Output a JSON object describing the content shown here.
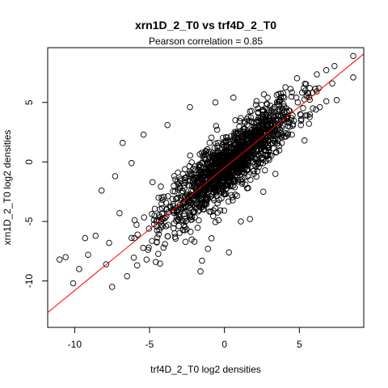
{
  "chart_data": {
    "type": "scatter",
    "title": "xrn1D_2_T0 vs trf4D_2_T0",
    "subtitle": "Pearson correlation =  0.85",
    "xlabel": "trf4D_2_T0 log2 densities",
    "ylabel": "xrn1D_2_T0 log2 densities",
    "xlim": [
      -11.8,
      9.3
    ],
    "ylim": [
      -13.9,
      9.6
    ],
    "xticks": [
      -10,
      -5,
      0,
      5
    ],
    "xtick_labels": [
      "-10",
      "-5",
      "0",
      "5"
    ],
    "yticks": [
      -10,
      -5,
      0,
      5
    ],
    "yticks_labels": [
      "-10",
      "-5",
      "0",
      "5"
    ],
    "grid": false,
    "legend": "none",
    "point_marker": "open-circle",
    "point_color": "#000000",
    "fit_line": {
      "color": "#ff0000",
      "intercept": -0.5,
      "slope": 1.03,
      "x_range": [
        -11.8,
        9.3
      ]
    },
    "points": [
      [
        8.6,
        8.9
      ],
      [
        8.6,
        7.1
      ],
      [
        7.5,
        5.2
      ],
      [
        7.2,
        6.6
      ],
      [
        6.3,
        6.2
      ],
      [
        5.9,
        4.5
      ],
      [
        5.4,
        6.0
      ],
      [
        5.1,
        3.1
      ],
      [
        4.8,
        5.4
      ],
      [
        4.5,
        2.3
      ],
      [
        3.6,
        5.7
      ],
      [
        3.2,
        1.6
      ],
      [
        2.6,
        -2.5
      ],
      [
        2.1,
        4.8
      ],
      [
        1.4,
        -1.9
      ],
      [
        1.1,
        -5.0
      ],
      [
        0.3,
        -7.6
      ],
      [
        0.1,
        -2.7
      ],
      [
        -0.4,
        -4.9
      ],
      [
        -1.1,
        -7.3
      ],
      [
        -1.6,
        -9.2
      ],
      [
        -2.3,
        -4.4
      ],
      [
        -3.3,
        -6.3
      ],
      [
        -3.9,
        -5.4
      ],
      [
        -4.4,
        -3.0
      ],
      [
        -5.2,
        -8.2
      ],
      [
        -5.8,
        -6.1
      ],
      [
        -6.5,
        -9.6
      ],
      [
        -7.0,
        -4.3
      ],
      [
        -7.5,
        -10.5
      ],
      [
        -7.9,
        -8.6
      ],
      [
        -8.2,
        -2.4
      ],
      [
        -8.6,
        -6.2
      ],
      [
        -9.1,
        -7.8
      ],
      [
        -9.7,
        -9.0
      ],
      [
        -10.1,
        -10.2
      ],
      [
        -10.6,
        -8.0
      ],
      [
        -11.0,
        -8.2
      ],
      [
        -6.2,
        -0.1
      ],
      [
        -6.8,
        1.6
      ],
      [
        -5.4,
        2.3
      ],
      [
        -3.8,
        3.1
      ],
      [
        -2.3,
        4.6
      ],
      [
        -0.6,
        5.0
      ],
      [
        0.6,
        5.4
      ],
      [
        1.7,
        -4.8
      ],
      [
        3.4,
        -1.0
      ],
      [
        -4.2,
        -3.5
      ],
      [
        -1.5,
        -8.3
      ],
      [
        -2.0,
        -6.7
      ],
      [
        2.4,
        3.7
      ],
      [
        2.9,
        0.6
      ],
      [
        4.0,
        2.1
      ],
      [
        5.7,
        4.0
      ],
      [
        6.8,
        5.1
      ],
      [
        -7.3,
        -1.2
      ],
      [
        -7.7,
        -6.8
      ],
      [
        -9.3,
        -6.4
      ],
      [
        -4.8,
        -1.7
      ],
      [
        -6.0,
        -4.9
      ],
      [
        -3.1,
        -4.0
      ]
    ],
    "bulk_cloud": {
      "count": 1500,
      "slope": 1.03,
      "intercept": -0.5,
      "x_center": 0.4,
      "x_sd": 2.2,
      "residual_sd": 1.25,
      "x_range": [
        -7.0,
        7.8
      ]
    }
  }
}
